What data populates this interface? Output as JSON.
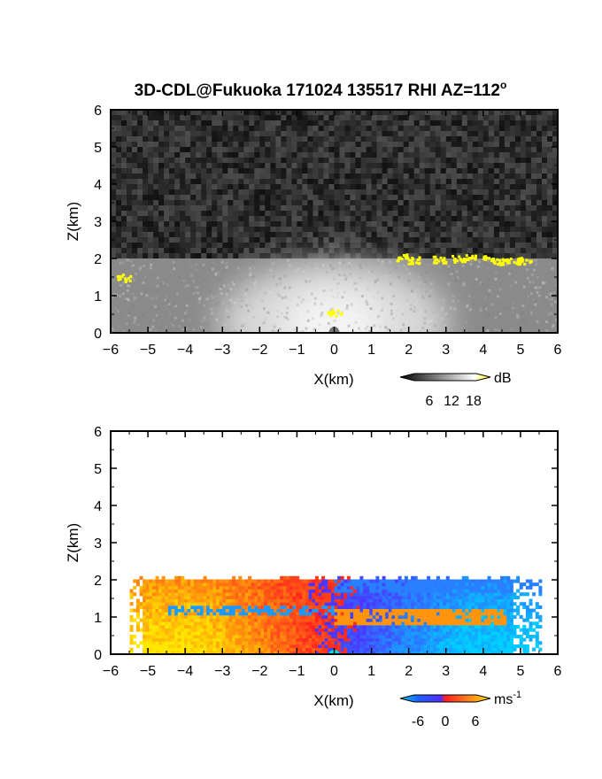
{
  "title": "3D-CDL@Fukuoka 171024 135517 RHI AZ=112",
  "title_superscript": "o",
  "chart_data": [
    {
      "type": "heatmap",
      "panel": "top",
      "quantity": "backscatter",
      "xlabel": "X(km)",
      "ylabel": "Z(km)",
      "xlim": [
        -6,
        6
      ],
      "ylim": [
        0,
        6
      ],
      "xticks": [
        -6,
        -5,
        -4,
        -3,
        -2,
        -1,
        0,
        1,
        2,
        3,
        4,
        5,
        6
      ],
      "yticks": [
        0,
        1,
        2,
        3,
        4,
        5,
        6
      ],
      "colorbar": {
        "unit": "dB",
        "tick_labels": [
          "6",
          "12",
          "18"
        ],
        "colors": [
          "#000000",
          "#ffffff",
          "#ffff00"
        ]
      },
      "layer_top_km": 2.0,
      "strong_echoes": [
        {
          "x": -5.65,
          "z": 1.5
        },
        {
          "x": 0.0,
          "z": 0.55
        },
        {
          "x": 1.8,
          "z": 2.05
        },
        {
          "x": 2.1,
          "z": 1.98
        },
        {
          "x": 2.8,
          "z": 2.0
        },
        {
          "x": 3.3,
          "z": 2.0
        },
        {
          "x": 3.6,
          "z": 2.05
        },
        {
          "x": 4.1,
          "z": 2.0
        },
        {
          "x": 4.5,
          "z": 1.95
        },
        {
          "x": 4.8,
          "z": 1.95
        },
        {
          "x": 5.1,
          "z": 1.95
        }
      ]
    },
    {
      "type": "heatmap",
      "panel": "bottom",
      "quantity": "radial_velocity",
      "xlabel": "X(km)",
      "ylabel": "Z(km)",
      "xlim": [
        -6,
        6
      ],
      "ylim": [
        0,
        6
      ],
      "xticks": [
        -6,
        -5,
        -4,
        -3,
        -2,
        -1,
        0,
        1,
        2,
        3,
        4,
        5,
        6
      ],
      "yticks": [
        0,
        1,
        2,
        3,
        4,
        5,
        6
      ],
      "colorbar": {
        "unit": "ms",
        "unit_superscript": "-1",
        "tick_labels": [
          "-6",
          "0",
          "6"
        ],
        "colors": [
          "#00d0e0",
          "#1f5fff",
          "#5030ff",
          "#ff2020",
          "#ff8020",
          "#ffe000"
        ]
      },
      "layer_top_km": 2.0
    }
  ]
}
